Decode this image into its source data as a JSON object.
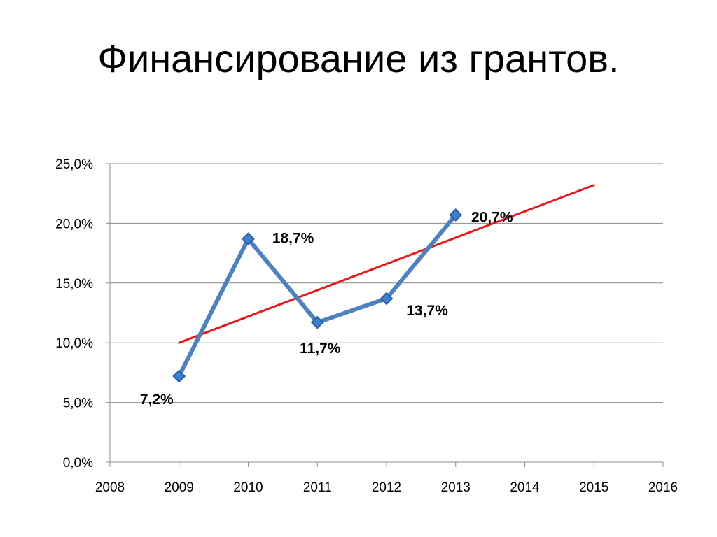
{
  "slide": {
    "title": "Финансирование из грантов."
  },
  "chart_data": {
    "type": "line",
    "title": "",
    "xlabel": "",
    "ylabel": "",
    "xlim": [
      2008,
      2016
    ],
    "ylim": [
      0,
      25
    ],
    "x_ticks": [
      2008,
      2009,
      2010,
      2011,
      2012,
      2013,
      2014,
      2015,
      2016
    ],
    "x_tick_labels": [
      "2008",
      "2009",
      "2010",
      "2011",
      "2012",
      "2013",
      "2014",
      "2015",
      "2016"
    ],
    "y_ticks": [
      0,
      5,
      10,
      15,
      20,
      25
    ],
    "y_tick_labels": [
      "0,0%",
      "5,0%",
      "10,0%",
      "15,0%",
      "20,0%",
      "25,0%"
    ],
    "grid": "horizontal",
    "legend": "none",
    "series": [
      {
        "x": [
          2009,
          2010,
          2011,
          2012,
          2013
        ],
        "values": [
          7.2,
          18.7,
          11.7,
          13.7,
          20.7
        ],
        "data_labels": [
          "7,2%",
          "18,7%",
          "11,7%",
          "13,7%",
          "20,7%"
        ],
        "color": "#4F81BD",
        "marker": "diamond"
      },
      {
        "kind": "trendline",
        "x": [
          2009,
          2015
        ],
        "values": [
          10.0,
          23.2
        ],
        "color": "#E31A1C"
      }
    ]
  }
}
